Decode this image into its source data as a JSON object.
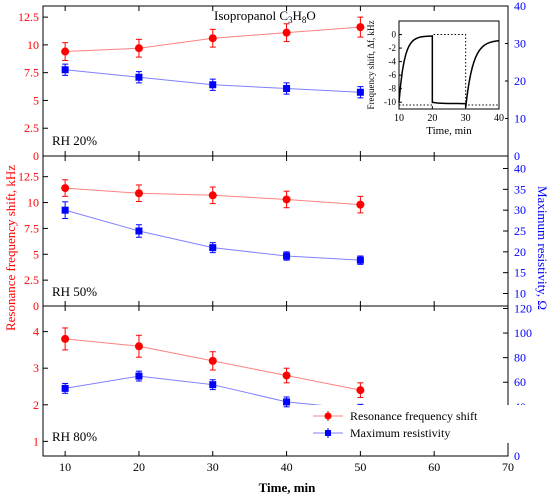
{
  "chart_data": [
    {
      "type": "line",
      "panel_label": "RH 20%",
      "title": "Isopropanol C3H8O",
      "title_main": "Isopropanol C",
      "title_sub1": "3",
      "title_mid": "H",
      "title_sub2": "8",
      "title_end": "O",
      "x": [
        10,
        20,
        30,
        40,
        50
      ],
      "xlim": [
        7,
        70
      ],
      "ylim_left": [
        0,
        13.5
      ],
      "ylim_right": [
        0,
        40
      ],
      "yticks_left": [
        "0",
        "2.5",
        "5",
        "7.5",
        "10",
        "12.5"
      ],
      "yticks_right": [
        "0",
        "10",
        "20",
        "30",
        "40"
      ],
      "series": [
        {
          "axis": "left",
          "values": [
            9.4,
            9.7,
            10.6,
            11.1,
            11.6
          ],
          "errors": [
            0.8,
            0.8,
            0.8,
            0.8,
            0.9
          ]
        },
        {
          "axis": "right",
          "values": [
            23.0,
            21.0,
            19.0,
            18.0,
            17.0
          ],
          "errors": [
            1.5,
            1.5,
            1.5,
            1.5,
            1.5
          ]
        }
      ],
      "inset": {
        "xlabel": "Time, min",
        "ylabel": "Frequency shift, Δf, kHz",
        "xlim": [
          10,
          40
        ],
        "ylim": [
          -11,
          2
        ],
        "xticks": [
          "10",
          "20",
          "30",
          "40"
        ],
        "yticks": [
          "-10",
          "-8",
          "-6",
          "-4",
          "-2",
          "0"
        ]
      }
    },
    {
      "type": "line",
      "panel_label": "RH 50%",
      "x": [
        10,
        20,
        30,
        40,
        50
      ],
      "xlim": [
        7,
        70
      ],
      "ylim_left": [
        0,
        14.5
      ],
      "ylim_right": [
        7,
        43
      ],
      "yticks_left": [
        "0",
        "2.5",
        "5",
        "7.5",
        "10",
        "12.5"
      ],
      "yticks_right": [
        "10",
        "15",
        "20",
        "25",
        "30",
        "35",
        "40"
      ],
      "series": [
        {
          "axis": "left",
          "values": [
            11.4,
            10.9,
            10.7,
            10.3,
            9.8
          ],
          "errors": [
            0.8,
            0.8,
            0.8,
            0.8,
            0.8
          ]
        },
        {
          "axis": "right",
          "values": [
            30.0,
            25.0,
            21.0,
            19.0,
            18.0
          ],
          "errors": [
            2.0,
            1.5,
            1.2,
            1.0,
            1.0
          ]
        }
      ],
      "label_color_left": "#ff0000",
      "label_color_right": "#0000ff",
      "ylabel_left": "Resonance frequency shift, kHz",
      "ylabel_right": "Maximum resistivity, Ω"
    },
    {
      "type": "line",
      "panel_label": "RH 80%",
      "x": [
        10,
        20,
        30,
        40,
        50
      ],
      "xlim": [
        7,
        70
      ],
      "ylim_left": [
        0.6,
        4.7
      ],
      "ylim_right": [
        0,
        122
      ],
      "yticks_left": [
        "1",
        "2",
        "3",
        "4"
      ],
      "yticks_right": [
        "0",
        "20",
        "40",
        "60",
        "80",
        "100",
        "120"
      ],
      "series": [
        {
          "name": "Resonance frequency shift",
          "axis": "left",
          "values": [
            3.8,
            3.6,
            3.2,
            2.8,
            2.4
          ],
          "errors": [
            0.3,
            0.3,
            0.25,
            0.2,
            0.2
          ]
        },
        {
          "name": "Maximum resistivity",
          "axis": "right",
          "values": [
            55,
            65,
            58,
            44,
            38
          ],
          "errors": [
            4,
            4,
            4,
            4,
            4
          ]
        }
      ],
      "xlabel": "Time, min",
      "xticks": [
        "10",
        "20",
        "30",
        "40",
        "50",
        "60",
        "70"
      ],
      "legend_position": "bottom-right"
    }
  ],
  "colors": {
    "red_series": "#ff0000",
    "red_line": "#ff8080",
    "blue_series": "#0000ff",
    "blue_line": "#8080ff",
    "axis": "#000000"
  }
}
